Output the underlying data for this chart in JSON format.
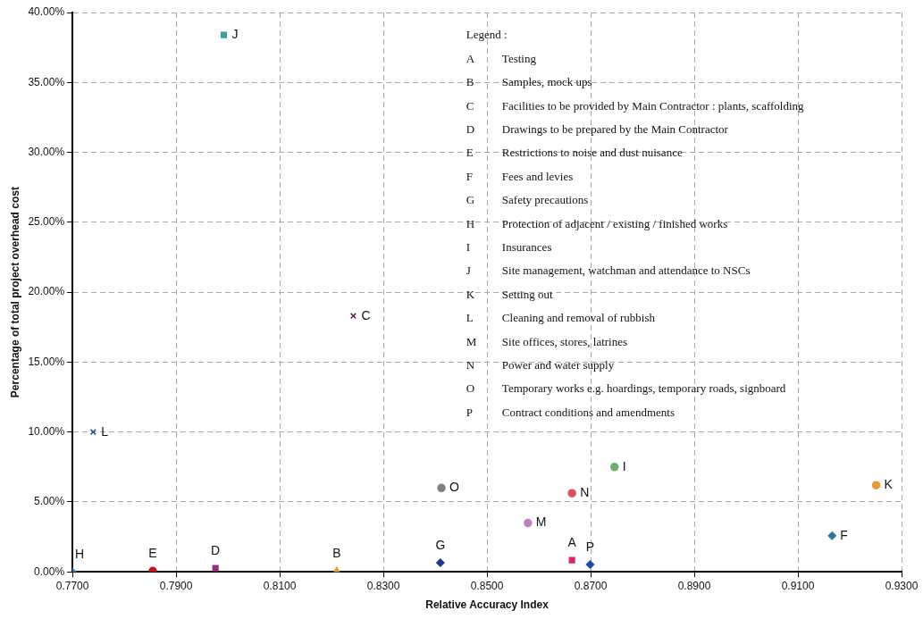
{
  "chart_data": {
    "type": "scatter",
    "xlabel": "Relative Accuracy Index",
    "ylabel": "Percentage of total project overhead cost",
    "xlim": [
      0.77,
      0.93
    ],
    "xticks": [
      {
        "value": 0.77,
        "label": "0.7700"
      },
      {
        "value": 0.79,
        "label": "0.7900"
      },
      {
        "value": 0.81,
        "label": "0.8100"
      },
      {
        "value": 0.83,
        "label": "0.8300"
      },
      {
        "value": 0.85,
        "label": "0.8500"
      },
      {
        "value": 0.87,
        "label": "0.8700"
      },
      {
        "value": 0.89,
        "label": "0.8900"
      },
      {
        "value": 0.91,
        "label": "0.9100"
      },
      {
        "value": 0.93,
        "label": "0.9300"
      }
    ],
    "ylim": [
      0,
      40
    ],
    "yticks": [
      {
        "value": 0,
        "label": "0.00%"
      },
      {
        "value": 5,
        "label": "5.00%"
      },
      {
        "value": 10,
        "label": "10.00%"
      },
      {
        "value": 15,
        "label": "15.00%"
      },
      {
        "value": 20,
        "label": "20.00%"
      },
      {
        "value": 25,
        "label": "25.00%"
      },
      {
        "value": 30,
        "label": "30.00%"
      },
      {
        "value": 35,
        "label": "35.00%"
      },
      {
        "value": 40,
        "label": "40.00%"
      }
    ],
    "grid": true,
    "series": [
      {
        "name": "A",
        "color": "#e0245e",
        "marker": "square",
        "x": [
          0.8664
        ],
        "values": [
          0.84
        ]
      },
      {
        "name": "B",
        "color": "#e89a30",
        "marker": "triangle",
        "x": [
          0.821
        ],
        "values": [
          0.06
        ]
      },
      {
        "name": "C",
        "color": "#6a1b5a",
        "marker": "cross",
        "x": [
          0.8242
        ],
        "values": [
          18.3
        ]
      },
      {
        "name": "D",
        "color": "#9b2a7a",
        "marker": "square",
        "x": [
          0.7976
        ],
        "values": [
          0.26
        ]
      },
      {
        "name": "E",
        "color": "#c0161e",
        "marker": "circle",
        "x": [
          0.7855
        ],
        "values": [
          0.06
        ]
      },
      {
        "name": "F",
        "color": "#2a7a9a",
        "marker": "diamond",
        "x": [
          0.9166
        ],
        "values": [
          2.58
        ]
      },
      {
        "name": "G",
        "color": "#1a3a8a",
        "marker": "diamond",
        "x": [
          0.841
        ],
        "values": [
          0.65
        ]
      },
      {
        "name": "H",
        "color": "#3a8ad0",
        "marker": "diamond",
        "x": [
          0.77
        ],
        "values": [
          0
        ]
      },
      {
        "name": "I",
        "color": "#6ab06a",
        "marker": "circle",
        "x": [
          0.8746
        ],
        "values": [
          7.5
        ]
      },
      {
        "name": "J",
        "color": "#3aa0a0",
        "marker": "square",
        "x": [
          0.7992
        ],
        "values": [
          38.4
        ]
      },
      {
        "name": "K",
        "color": "#e89a30",
        "marker": "circle",
        "x": [
          0.9251
        ],
        "values": [
          6.2
        ]
      },
      {
        "name": "L",
        "color": "#1a4aa0",
        "marker": "cross",
        "x": [
          0.774
        ],
        "values": [
          10.0
        ]
      },
      {
        "name": "M",
        "color": "#c080c0",
        "marker": "circle",
        "x": [
          0.8579
        ],
        "values": [
          3.49
        ]
      },
      {
        "name": "N",
        "color": "#e05060",
        "marker": "circle",
        "x": [
          0.8664
        ],
        "values": [
          5.62
        ]
      },
      {
        "name": "O",
        "color": "#808080",
        "marker": "circle",
        "x": [
          0.8412
        ],
        "values": [
          6.0
        ]
      },
      {
        "name": "P",
        "color": "#1a4ab0",
        "marker": "diamond",
        "x": [
          0.8699
        ],
        "values": [
          0.52
        ]
      }
    ],
    "annotations": [
      "Legend :",
      "A Testing",
      "B Samples, mock ups",
      "C Facilities to be provided by Main Contractor : plants, scaffolding",
      "D Drawings to be prepared by the Main Contractor",
      "E Restrictions to noise and dust nuisance",
      "F Fees and levies",
      "G Safety precautions",
      "H Protection of adjacent / existing / finished works",
      "I Insurances",
      "J Site management, watchman and attendance to NSCs",
      "K Setting out",
      "L Cleaning and removal of rubbish",
      "M Site offices, stores, latrines",
      "N Power and water supply",
      "O Temporary works e.g. hoardings, temporary roads, signboard",
      "P Contract conditions and amendments"
    ]
  }
}
